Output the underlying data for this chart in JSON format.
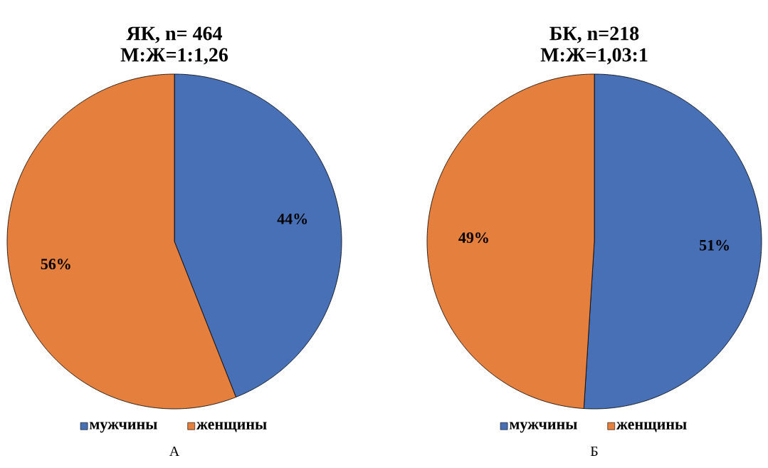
{
  "chart_data": [
    {
      "type": "pie",
      "title": "ЯК, n= 464",
      "subtitle": "М:Ж=1:1,26",
      "categories": [
        "мужчины",
        "женщины"
      ],
      "values": [
        44,
        56
      ],
      "colors": [
        "#4770b6",
        "#e57f3e"
      ],
      "value_labels": [
        "44%",
        "56%"
      ],
      "legend": "bottom",
      "annotations": [
        "А"
      ]
    },
    {
      "type": "pie",
      "title": "БК, n=218",
      "subtitle": "М:Ж=1,03:1",
      "categories": [
        "мужчины",
        "женщины"
      ],
      "values": [
        51,
        49
      ],
      "colors": [
        "#4770b6",
        "#e57f3e"
      ],
      "value_labels": [
        "51%",
        "49%"
      ],
      "legend": "bottom",
      "annotations": [
        "Б"
      ]
    }
  ]
}
